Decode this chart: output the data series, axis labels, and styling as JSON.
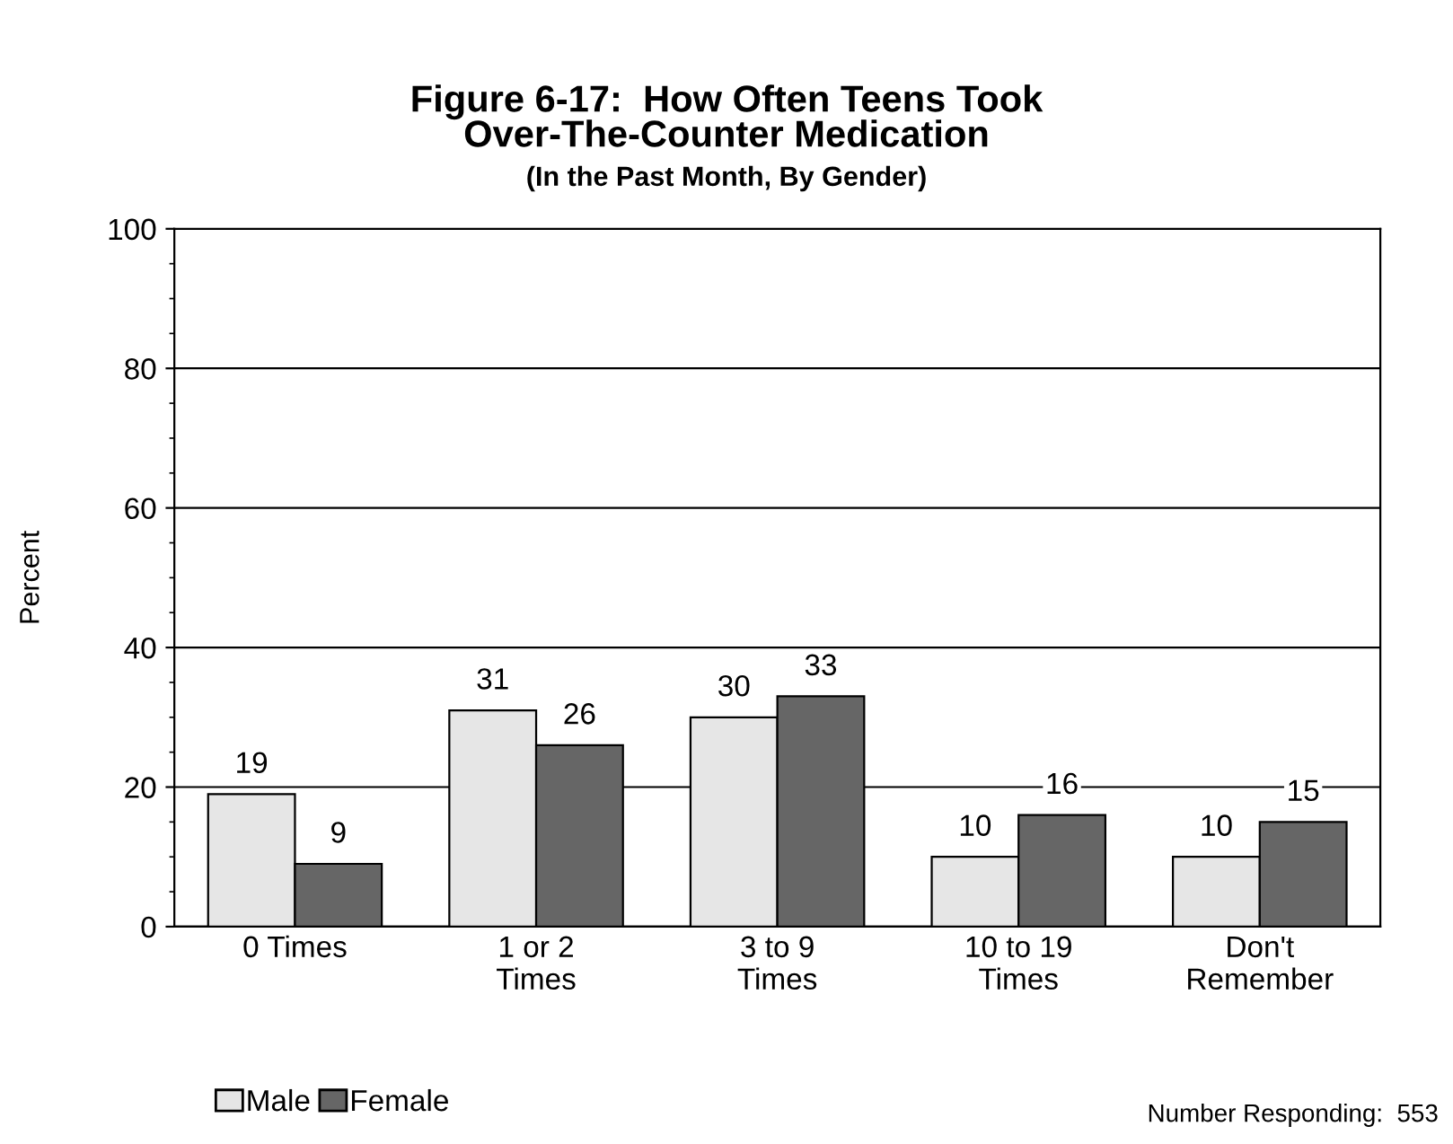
{
  "chart_data": {
    "type": "bar",
    "title": "Figure 6-17:  How Often Teens Took\nOver-The-Counter Medication",
    "subtitle": "(In the Past Month, By Gender)",
    "ylabel": "Percent",
    "categories": [
      "0 Times",
      "1 or 2\nTimes",
      "3 to 9\nTimes",
      "10 to 19\nTimes",
      "Don't\nRemember"
    ],
    "series": [
      {
        "name": "Male",
        "color": "#e6e6e6",
        "values": [
          19,
          31,
          30,
          10,
          10
        ]
      },
      {
        "name": "Female",
        "color": "#666666",
        "values": [
          9,
          26,
          33,
          16,
          15
        ]
      }
    ],
    "ylim": [
      0,
      100
    ],
    "yticks": [
      0,
      20,
      40,
      60,
      80,
      100
    ],
    "grid": "y",
    "legend": "bottom left",
    "data_labels": true,
    "annotations": [
      "Number Responding:  553"
    ]
  }
}
